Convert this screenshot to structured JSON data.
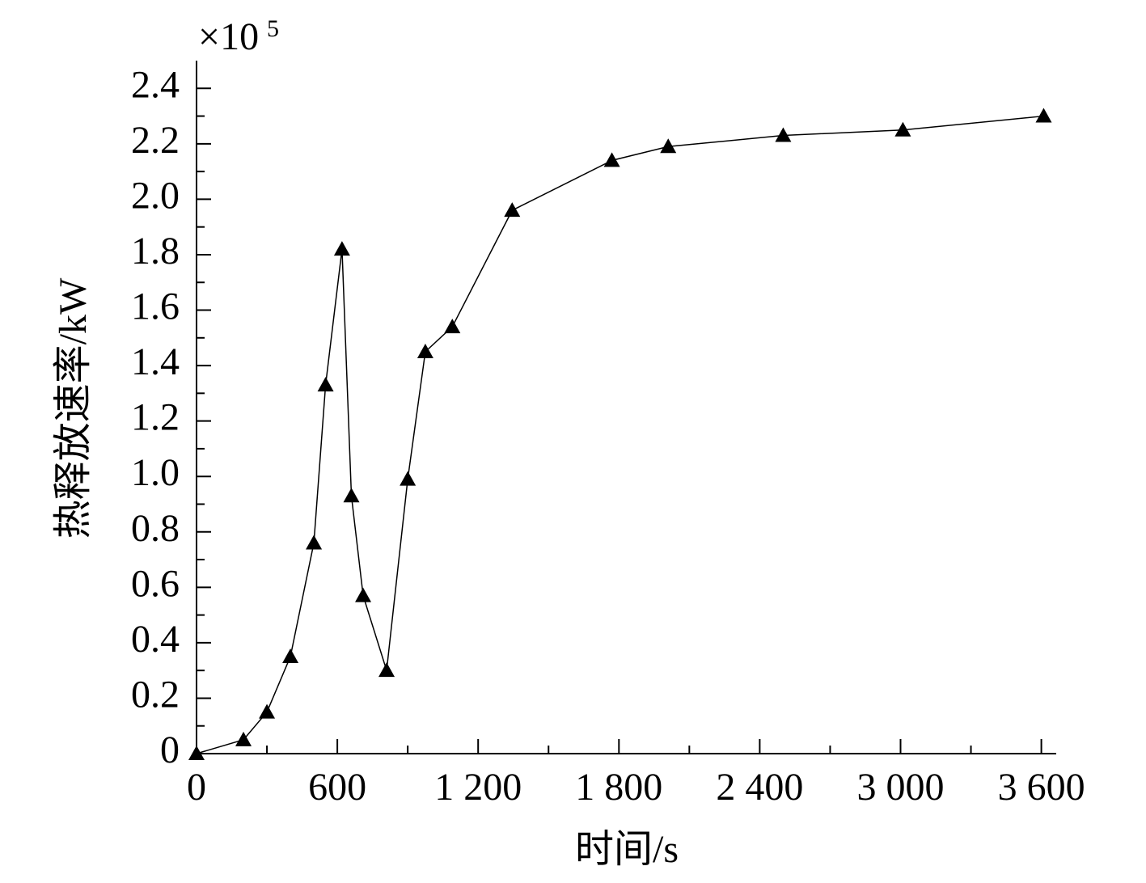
{
  "chart_data": {
    "type": "line",
    "y_multiplier": "×10",
    "y_multiplier_exponent": "5",
    "x_label": "时间/s",
    "y_label": "热释放速率/kW",
    "x": [
      0,
      200,
      300,
      400,
      500,
      550,
      620,
      660,
      710,
      810,
      900,
      975,
      1090,
      1345,
      1770,
      2010,
      2500,
      3010,
      3610
    ],
    "series": [
      {
        "color": "#000000",
        "values": [
          0,
          0.05,
          0.15,
          0.35,
          0.76,
          1.33,
          1.82,
          0.93,
          0.57,
          0.3,
          0.99,
          1.45,
          1.54,
          1.96,
          2.14,
          2.19,
          2.23,
          2.25,
          2.3
        ]
      }
    ],
    "xlim": [
      0,
      3660
    ],
    "ylim": [
      0,
      2.5
    ],
    "xticks": [
      0,
      600,
      {
        "value": 1200,
        "label": "1 200"
      },
      {
        "value": 1800,
        "label": "1 800"
      },
      {
        "value": 2400,
        "label": "2 400"
      },
      {
        "value": 3000,
        "label": "3 000"
      },
      {
        "value": 3600,
        "label": "3 600"
      }
    ],
    "yticks": [
      0,
      0.2,
      0.4,
      0.6,
      0.8,
      {
        "value": 1.0,
        "label": "1.0"
      },
      1.2,
      1.4,
      1.6,
      1.8,
      {
        "value": 2.0,
        "label": "2.0"
      },
      2.2,
      2.4
    ]
  }
}
